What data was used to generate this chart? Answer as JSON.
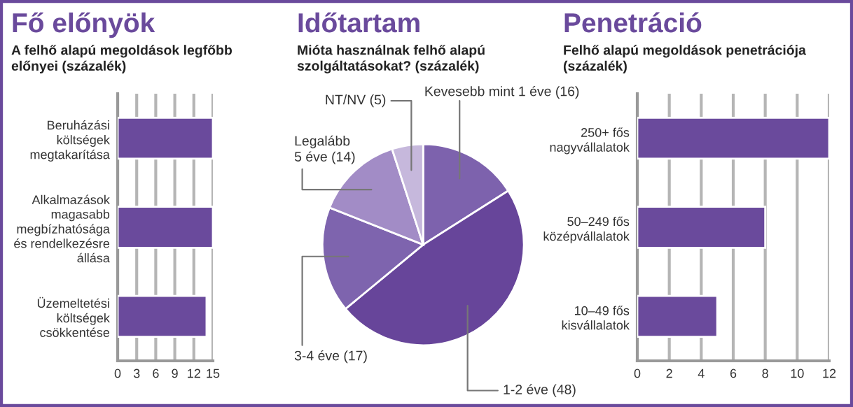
{
  "chart_data": [
    {
      "type": "bar",
      "orientation": "horizontal",
      "title": "Fő előnyök",
      "subtitle": "A felhő alapú megoldások legfőbb\nelőnyei (százalék)",
      "categories": [
        "Beruházási\nköltségek\nmegtakarítása",
        "Alkalmazások\nmagasabb\nmegbízhatósága\nés rendelkezésre\nállása",
        "Üzemeltetési\nköltségek\ncsökkentése"
      ],
      "values": [
        15,
        15,
        14
      ],
      "color": "#6a4a9c",
      "xlim": [
        0,
        15
      ],
      "xticks": [
        0,
        3,
        6,
        9,
        12,
        15
      ],
      "grid": "x"
    },
    {
      "type": "pie",
      "title": "Időtartam",
      "subtitle": "Mióta használnak felhő alapú\nszolgáltatásokat? (százalék)",
      "categories": [
        "Kevesebb mint 1 éve (16)",
        "1-2 éve (48)",
        "3-4 éve (17)",
        "Legalább\n5 éve (14)",
        "NT/NV (5)"
      ],
      "values": [
        16,
        48,
        17,
        14,
        5
      ],
      "colors": [
        "#7d62ad",
        "#67459a",
        "#7e64ae",
        "#a28cc6",
        "#c6b8dc"
      ]
    },
    {
      "type": "bar",
      "orientation": "horizontal",
      "title": "Penetráció",
      "subtitle": "Felhő alapú megoldások penetrációja\n(százalék)",
      "categories": [
        "250+ fős\nnagyvállalatok",
        "50–249 fős\nközépvállalatok",
        "10–49 fős\nkisvállalatok"
      ],
      "values": [
        12,
        8,
        5
      ],
      "color": "#6a4a9c",
      "xlim": [
        0,
        12
      ],
      "xticks": [
        0,
        2,
        4,
        6,
        8,
        10,
        12
      ],
      "grid": "x"
    }
  ]
}
